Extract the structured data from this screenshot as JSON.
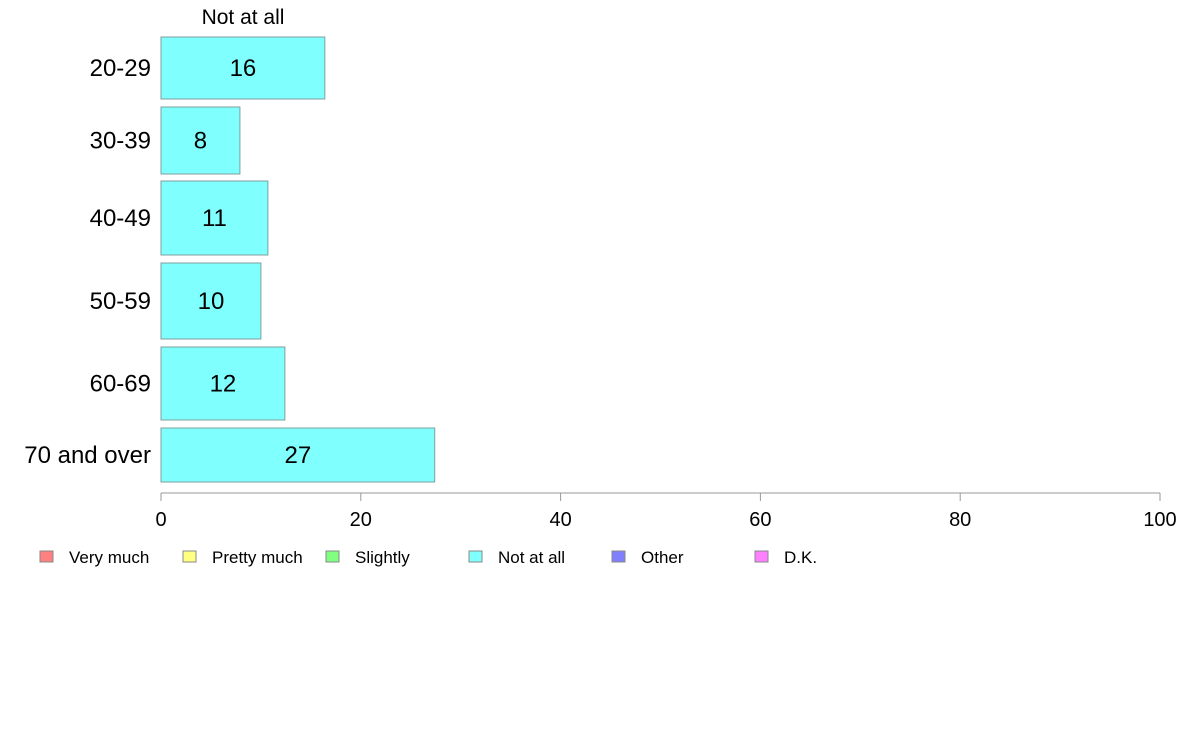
{
  "chart_data": {
    "type": "bar",
    "orientation": "horizontal",
    "column_header": "Not at all",
    "categories": [
      "20-29",
      "30-39",
      "40-49",
      "50-59",
      "60-69",
      "70 and over"
    ],
    "series": [
      {
        "name": "Not at all",
        "values": [
          16,
          8,
          11,
          10,
          12,
          27
        ],
        "color": "#80ffff",
        "actual_values": [
          16.4,
          7.9,
          10.7,
          10.0,
          12.4,
          27.4
        ]
      }
    ],
    "xlim": [
      0,
      100
    ],
    "x_ticks": [
      "0",
      "20",
      "40",
      "60",
      "80",
      "100"
    ],
    "grid": false,
    "legend": {
      "position": "bottom",
      "items": [
        {
          "label": "Very much",
          "color": "#ff8080"
        },
        {
          "label": "Pretty much",
          "color": "#ffff80"
        },
        {
          "label": "Slightly",
          "color": "#80ff80"
        },
        {
          "label": "Not at all",
          "color": "#80ffff"
        },
        {
          "label": "Other",
          "color": "#8080ff"
        },
        {
          "label": "D.K.",
          "color": "#ff80ff"
        }
      ]
    }
  }
}
